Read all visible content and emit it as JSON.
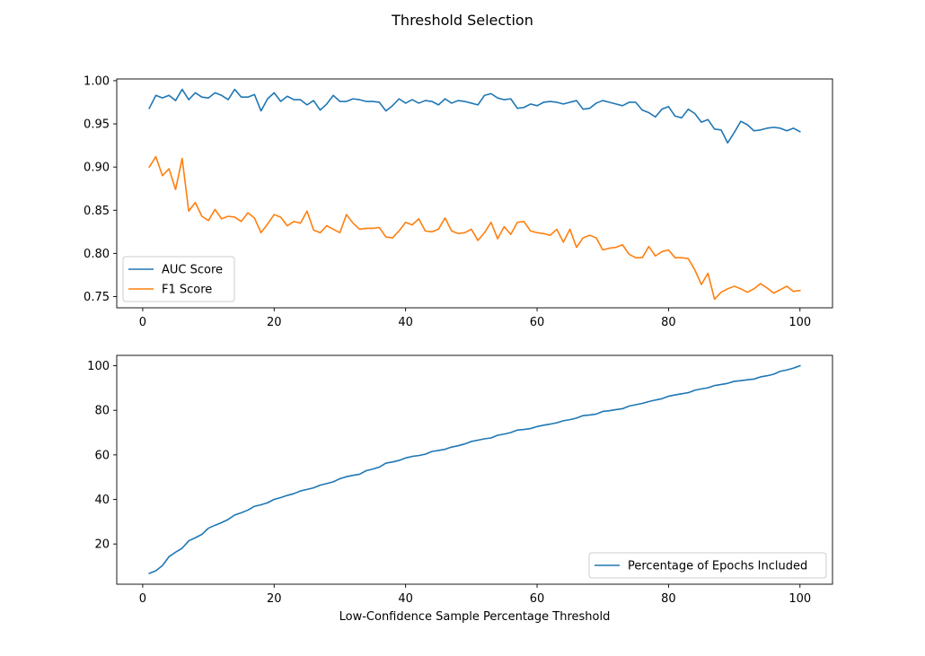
{
  "figure": {
    "title": "Threshold Selection"
  },
  "chart_data": [
    {
      "type": "line",
      "title": "",
      "xlabel": "",
      "ylabel": "",
      "xlim": [
        -3.95,
        104.95
      ],
      "ylim": [
        0.737,
        1.002
      ],
      "xticks": [
        0,
        20,
        40,
        60,
        80,
        100
      ],
      "yticks": [
        0.75,
        0.8,
        0.85,
        0.9,
        0.95,
        1.0
      ],
      "ytick_labels": [
        "0.75",
        "0.80",
        "0.85",
        "0.90",
        "0.95",
        "1.00"
      ],
      "legend_position": "lower-left",
      "grid": false,
      "x": [
        1,
        2,
        3,
        4,
        5,
        6,
        7,
        8,
        9,
        10,
        11,
        12,
        13,
        14,
        15,
        16,
        17,
        18,
        19,
        20,
        21,
        22,
        23,
        24,
        25,
        26,
        27,
        28,
        29,
        30,
        31,
        32,
        33,
        34,
        35,
        36,
        37,
        38,
        39,
        40,
        41,
        42,
        43,
        44,
        45,
        46,
        47,
        48,
        49,
        50,
        51,
        52,
        53,
        54,
        55,
        56,
        57,
        58,
        59,
        60,
        61,
        62,
        63,
        64,
        65,
        66,
        67,
        68,
        69,
        70,
        71,
        72,
        73,
        74,
        75,
        76,
        77,
        78,
        79,
        80,
        81,
        82,
        83,
        84,
        85,
        86,
        87,
        88,
        89,
        90,
        91,
        92,
        93,
        94,
        95,
        96,
        97,
        98,
        99,
        100
      ],
      "series": [
        {
          "name": "AUC Score",
          "color": "#1f77b4",
          "values": [
            0.968,
            0.983,
            0.98,
            0.983,
            0.977,
            0.99,
            0.978,
            0.986,
            0.981,
            0.98,
            0.986,
            0.983,
            0.978,
            0.99,
            0.981,
            0.981,
            0.984,
            0.965,
            0.979,
            0.986,
            0.976,
            0.982,
            0.978,
            0.978,
            0.972,
            0.977,
            0.966,
            0.973,
            0.983,
            0.976,
            0.976,
            0.979,
            0.978,
            0.976,
            0.976,
            0.975,
            0.965,
            0.971,
            0.979,
            0.974,
            0.978,
            0.974,
            0.977,
            0.976,
            0.972,
            0.979,
            0.974,
            0.977,
            0.976,
            0.974,
            0.972,
            0.983,
            0.985,
            0.98,
            0.978,
            0.979,
            0.968,
            0.969,
            0.973,
            0.971,
            0.975,
            0.976,
            0.975,
            0.973,
            0.975,
            0.977,
            0.967,
            0.968,
            0.974,
            0.977,
            0.975,
            0.973,
            0.971,
            0.975,
            0.975,
            0.966,
            0.963,
            0.958,
            0.967,
            0.97,
            0.959,
            0.957,
            0.967,
            0.962,
            0.952,
            0.955,
            0.944,
            0.943,
            0.928,
            0.94,
            0.953,
            0.949,
            0.942,
            0.943,
            0.945,
            0.946,
            0.945,
            0.942,
            0.945,
            0.941
          ]
        },
        {
          "name": "F1 Score",
          "color": "#ff7f0e",
          "values": [
            0.9,
            0.912,
            0.89,
            0.898,
            0.874,
            0.91,
            0.849,
            0.859,
            0.843,
            0.838,
            0.851,
            0.84,
            0.843,
            0.842,
            0.837,
            0.847,
            0.841,
            0.824,
            0.834,
            0.845,
            0.842,
            0.832,
            0.837,
            0.835,
            0.849,
            0.827,
            0.824,
            0.832,
            0.828,
            0.824,
            0.845,
            0.835,
            0.828,
            0.829,
            0.829,
            0.83,
            0.819,
            0.818,
            0.826,
            0.836,
            0.833,
            0.84,
            0.826,
            0.825,
            0.828,
            0.841,
            0.826,
            0.823,
            0.824,
            0.828,
            0.815,
            0.824,
            0.836,
            0.817,
            0.831,
            0.822,
            0.836,
            0.837,
            0.826,
            0.824,
            0.823,
            0.821,
            0.828,
            0.813,
            0.828,
            0.807,
            0.818,
            0.821,
            0.818,
            0.804,
            0.806,
            0.807,
            0.81,
            0.799,
            0.795,
            0.795,
            0.808,
            0.797,
            0.802,
            0.804,
            0.795,
            0.795,
            0.794,
            0.781,
            0.764,
            0.777,
            0.747,
            0.755,
            0.759,
            0.762,
            0.759,
            0.755,
            0.759,
            0.765,
            0.76,
            0.754,
            0.758,
            0.762,
            0.756,
            0.757
          ]
        }
      ]
    },
    {
      "type": "line",
      "title": "",
      "xlabel": "Low-Confidence Sample Percentage Threshold",
      "ylabel": "",
      "xlim": [
        -3.95,
        104.95
      ],
      "ylim": [
        1.95,
        104.65
      ],
      "xticks": [
        0,
        20,
        40,
        60,
        80,
        100
      ],
      "yticks": [
        20,
        40,
        60,
        80,
        100
      ],
      "ytick_labels": [
        "20",
        "40",
        "60",
        "80",
        "100"
      ],
      "legend_position": "lower-right",
      "grid": false,
      "x": [
        1,
        2,
        3,
        4,
        5,
        6,
        7,
        8,
        9,
        10,
        11,
        12,
        13,
        14,
        15,
        16,
        17,
        18,
        19,
        20,
        21,
        22,
        23,
        24,
        25,
        26,
        27,
        28,
        29,
        30,
        31,
        32,
        33,
        34,
        35,
        36,
        37,
        38,
        39,
        40,
        41,
        42,
        43,
        44,
        45,
        46,
        47,
        48,
        49,
        50,
        51,
        52,
        53,
        54,
        55,
        56,
        57,
        58,
        59,
        60,
        61,
        62,
        63,
        64,
        65,
        66,
        67,
        68,
        69,
        70,
        71,
        72,
        73,
        74,
        75,
        76,
        77,
        78,
        79,
        80,
        81,
        82,
        83,
        84,
        85,
        86,
        87,
        88,
        89,
        90,
        91,
        92,
        93,
        94,
        95,
        96,
        97,
        98,
        99,
        100
      ],
      "series": [
        {
          "name": "Percentage of Epochs Included",
          "color": "#1f77b4",
          "values": [
            6.8,
            8.0,
            10.3,
            14.3,
            16.3,
            18.1,
            21.4,
            22.8,
            24.3,
            27.1,
            28.4,
            29.6,
            31.0,
            33.0,
            34.0,
            35.2,
            36.9,
            37.6,
            38.5,
            40.0,
            40.8,
            41.8,
            42.6,
            43.8,
            44.5,
            45.2,
            46.4,
            47.1,
            47.9,
            49.3,
            50.2,
            50.8,
            51.3,
            52.9,
            53.6,
            54.5,
            56.3,
            56.8,
            57.5,
            58.6,
            59.3,
            59.7,
            60.3,
            61.5,
            62.0,
            62.5,
            63.5,
            64.1,
            64.9,
            66.0,
            66.6,
            67.2,
            67.6,
            68.8,
            69.3,
            70.0,
            71.1,
            71.4,
            71.8,
            72.7,
            73.3,
            73.8,
            74.4,
            75.3,
            75.8,
            76.5,
            77.6,
            77.9,
            78.3,
            79.5,
            79.8,
            80.3,
            80.7,
            81.9,
            82.5,
            83.1,
            83.9,
            84.6,
            85.2,
            86.3,
            86.9,
            87.4,
            87.9,
            89.0,
            89.6,
            90.1,
            91.1,
            91.6,
            92.1,
            93.0,
            93.3,
            93.7,
            94.0,
            95.0,
            95.5,
            96.2,
            97.5,
            98.1,
            98.9,
            100.0
          ]
        }
      ]
    }
  ]
}
